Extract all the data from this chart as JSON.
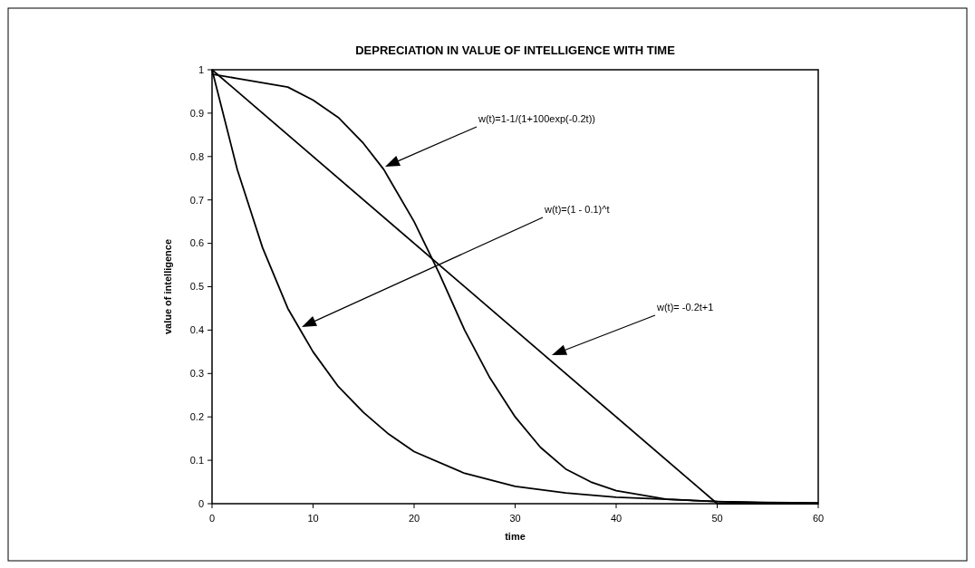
{
  "chart_data": {
    "type": "line",
    "title": "DEPRECIATION IN VALUE OF INTELLIGENCE WITH TIME",
    "xlabel": "time",
    "ylabel": "value of intelligence",
    "xlim": [
      0,
      60
    ],
    "ylim": [
      0,
      1
    ],
    "xticks": [
      0,
      10,
      20,
      30,
      40,
      50,
      60
    ],
    "yticks": [
      0,
      0.1,
      0.2,
      0.3,
      0.4,
      0.5,
      0.6,
      0.7,
      0.8,
      0.9,
      1
    ],
    "grid": false,
    "legend": false,
    "marker": "none",
    "line_style": "solid",
    "series": [
      {
        "color": "#000000",
        "x": [
          0,
          2.5,
          5,
          7.5,
          10,
          12.5,
          15,
          17,
          17.5,
          20,
          22.5,
          25,
          27.5,
          30,
          32.5,
          35,
          37.5,
          40,
          45,
          50,
          55,
          60
        ],
        "values": [
          0.99,
          0.98,
          0.97,
          0.96,
          0.93,
          0.89,
          0.83,
          0.77,
          0.75,
          0.65,
          0.53,
          0.4,
          0.29,
          0.2,
          0.13,
          0.08,
          0.05,
          0.03,
          0.01,
          0.005,
          0.002,
          0.001
        ]
      },
      {
        "color": "#000000",
        "x": [
          0,
          2.5,
          5,
          7.5,
          9,
          10,
          12.5,
          15,
          17.5,
          20,
          25,
          30,
          35,
          40,
          45,
          50,
          55,
          60
        ],
        "values": [
          1,
          0.77,
          0.59,
          0.45,
          0.39,
          0.35,
          0.27,
          0.21,
          0.16,
          0.12,
          0.07,
          0.04,
          0.025,
          0.015,
          0.01,
          0.005,
          0.003,
          0.002
        ]
      },
      {
        "color": "#000000",
        "x": [
          0,
          50,
          60
        ],
        "values": [
          1,
          0,
          0
        ]
      }
    ],
    "annotations": [
      "w(t)=1-1/(1+100exp(-0.2t))",
      "w(t)=(1 - 0.1)^t",
      "w(t)= -0.2t+1"
    ]
  }
}
